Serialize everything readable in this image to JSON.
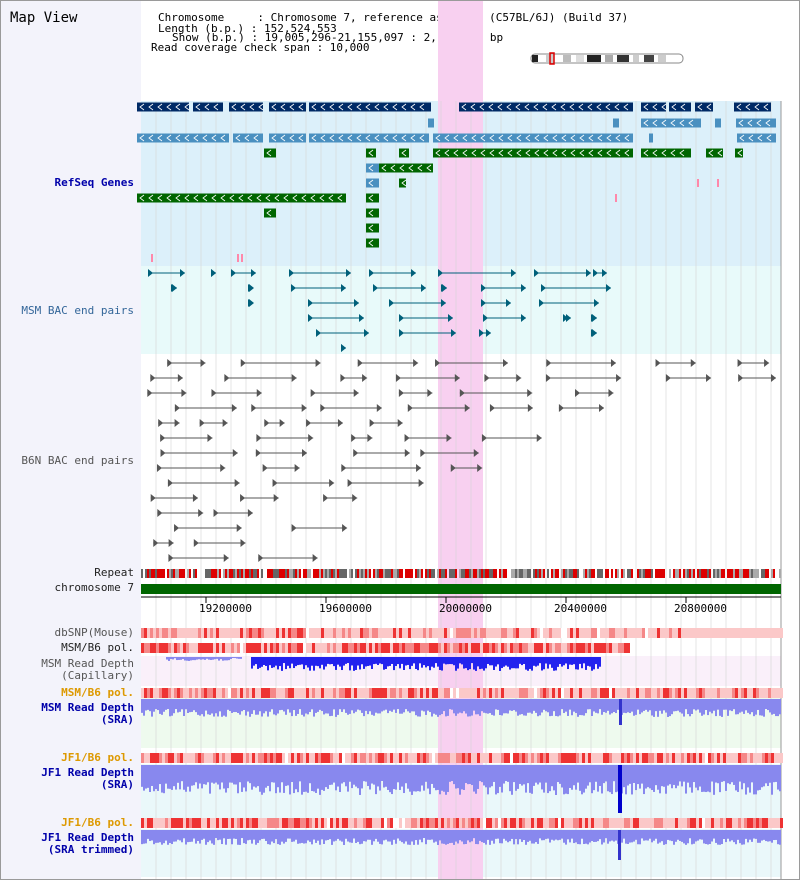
{
  "page": {
    "title": "Map View"
  },
  "info": {
    "chromosome": "Chromosome     : Chromosome 7, reference assembly (C57BL/6J) (Build 37)",
    "length": "Length (b.p.) : 152,524,553",
    "show": "Show (b.p.) : 19,005,296-21,155,097 : 2,149,802 bp",
    "coverage": "Read coverage check span : 10,000"
  },
  "tracks": {
    "refseq": "RefSeq Genes",
    "msm_bac": "MSM BAC end pairs",
    "b6n_bac": "B6N BAC end pairs",
    "repeat": "Repeat",
    "chromosome": "chromosome 7",
    "dbsnp": "dbSNP(Mouse)",
    "msm_b6_pol_1": "MSM/B6 pol.",
    "msm_read_depth_cap": "MSM Read Depth\n(Capillary)",
    "msm_b6_pol_2": "MSM/B6 pol.",
    "msm_read_depth_sra": "MSM Read Depth\n(SRA)",
    "jf1_b6_pol_1": "JF1/B6 pol.",
    "jf1_read_depth_sra": "JF1 Read Depth\n(SRA)",
    "jf1_b6_pol_2": "JF1/B6 pol.",
    "jf1_read_depth_trim": "JF1 Read Depth\n(SRA trimmed)"
  },
  "axis": {
    "ticks": [
      "19200000",
      "19600000",
      "20000000",
      "20400000",
      "20800000"
    ]
  },
  "colors": {
    "highlight": "#f8d0f0",
    "refseq_bg": "#dcf0fa",
    "msm_bac_bg": "#e8fafa",
    "navy_gene": "#002a66",
    "steel_gene": "#4a90c0",
    "green_gene": "#006600",
    "bac_teal": "#00607a",
    "bac_gray": "#555555",
    "depth_blue": "#2222ee",
    "depth_lilac": "#8888ee"
  }
}
